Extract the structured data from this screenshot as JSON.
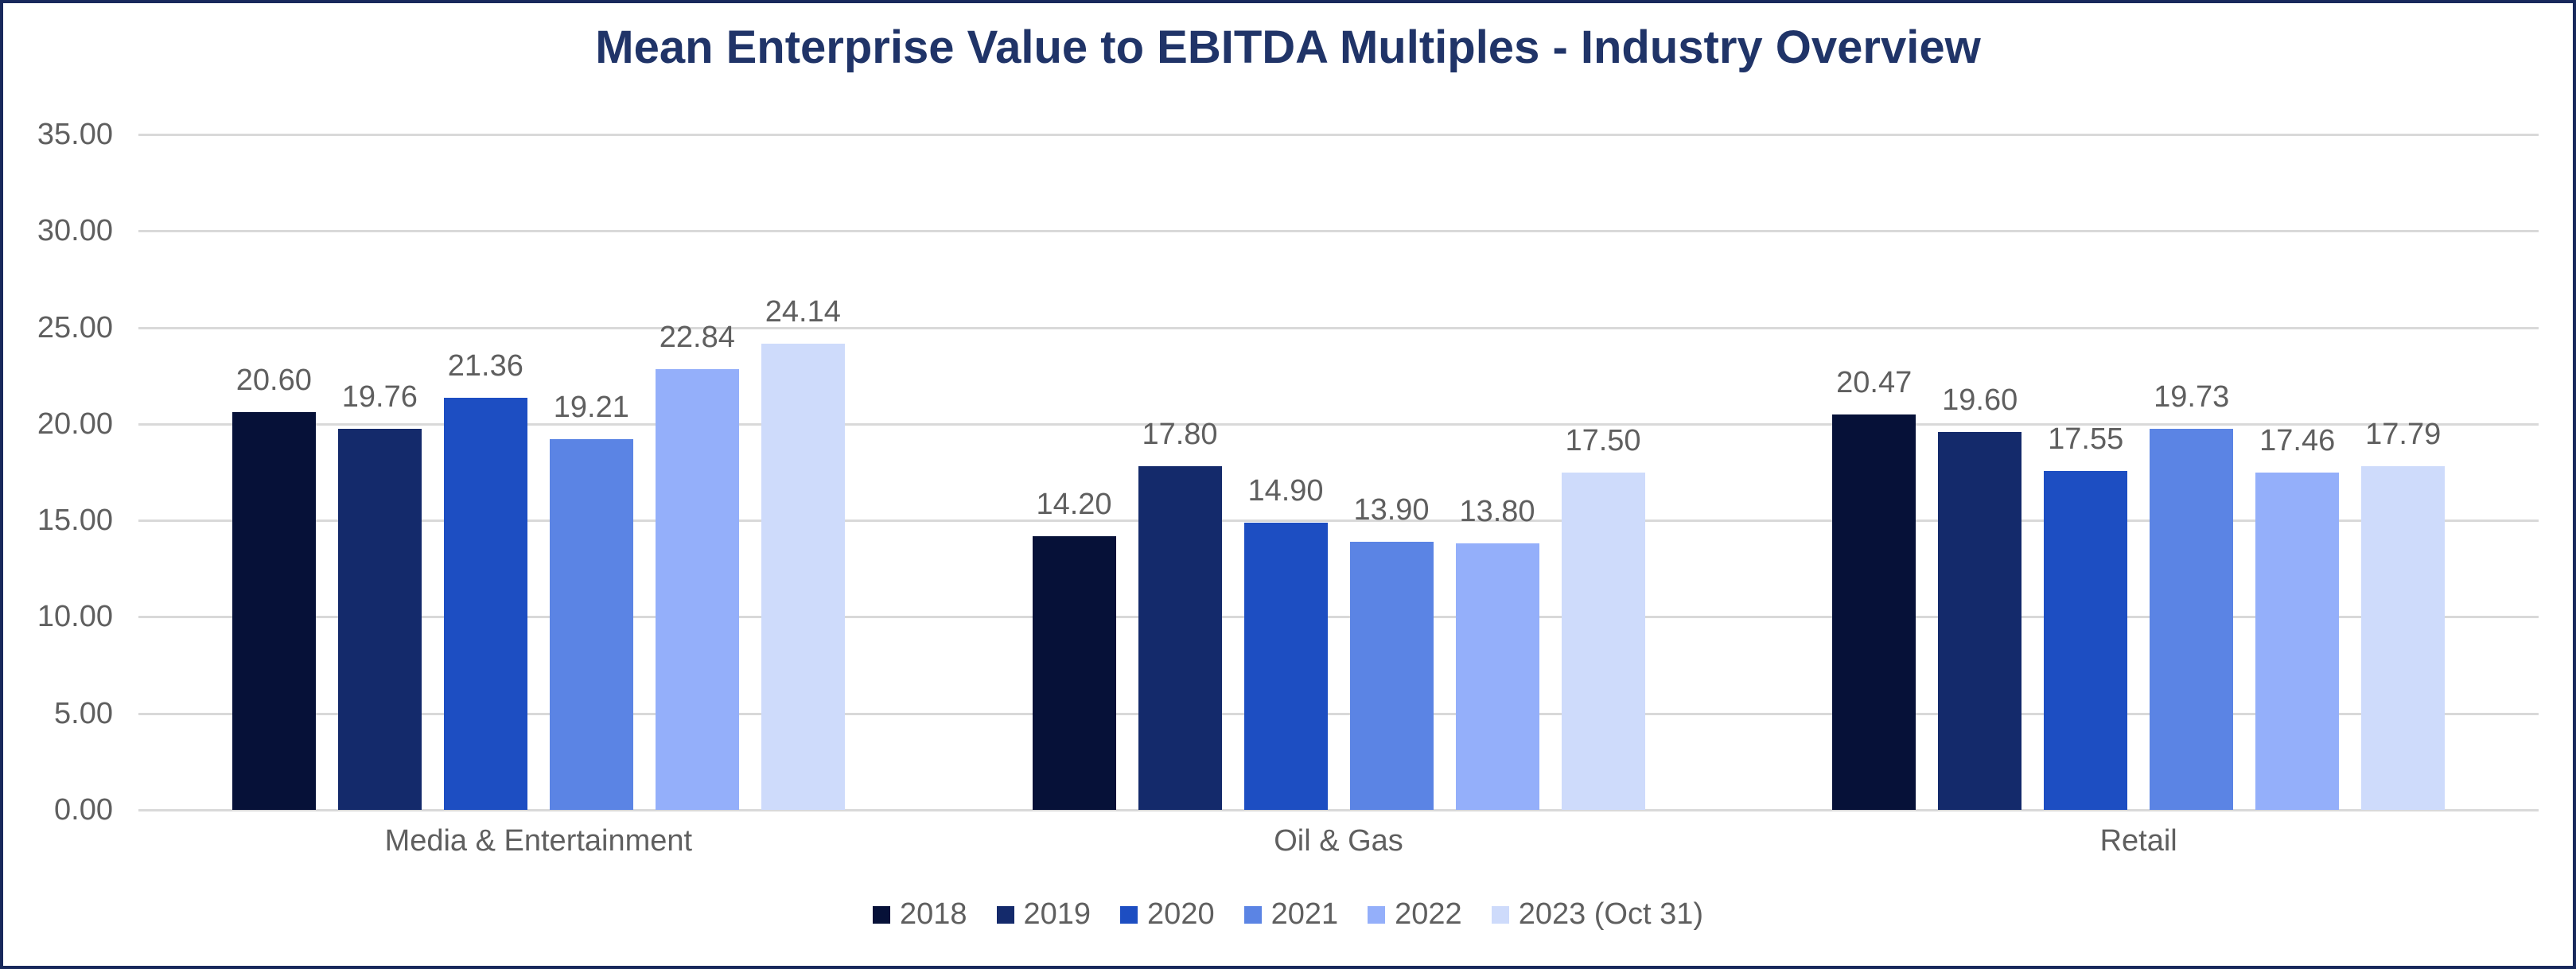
{
  "frame": {
    "border_color": "#18295c",
    "background_color": "#ffffff"
  },
  "chart_data": {
    "type": "bar",
    "title": "Mean Enterprise Value to EBITDA Multiples - Industry Overview",
    "title_color": "#203468",
    "categories": [
      "Media & Entertainment",
      "Oil & Gas",
      "Retail"
    ],
    "series": [
      {
        "name": "2018",
        "color": "#061138",
        "values": [
          20.6,
          14.2,
          20.47
        ]
      },
      {
        "name": "2019",
        "color": "#142a6b",
        "values": [
          19.76,
          17.8,
          19.6
        ]
      },
      {
        "name": "2020",
        "color": "#1d4ec2",
        "values": [
          21.36,
          14.9,
          17.55
        ]
      },
      {
        "name": "2021",
        "color": "#5b84e4",
        "values": [
          19.21,
          13.9,
          19.73
        ]
      },
      {
        "name": "2022",
        "color": "#94affa",
        "values": [
          22.84,
          13.8,
          17.46
        ]
      },
      {
        "name": "2023 (Oct 31)",
        "color": "#cedbfb",
        "values": [
          24.14,
          17.5,
          17.79
        ]
      }
    ],
    "ylim": [
      0,
      35
    ],
    "ytick_step": 5,
    "ytick_labels": [
      "0.00",
      "5.00",
      "10.00",
      "15.00",
      "20.00",
      "25.00",
      "30.00",
      "35.00"
    ],
    "value_label_decimals": 2,
    "grid": true,
    "gridline_color": "#d9d9d9",
    "axis_text_color": "#5f5f5f",
    "legend_position": "bottom"
  }
}
